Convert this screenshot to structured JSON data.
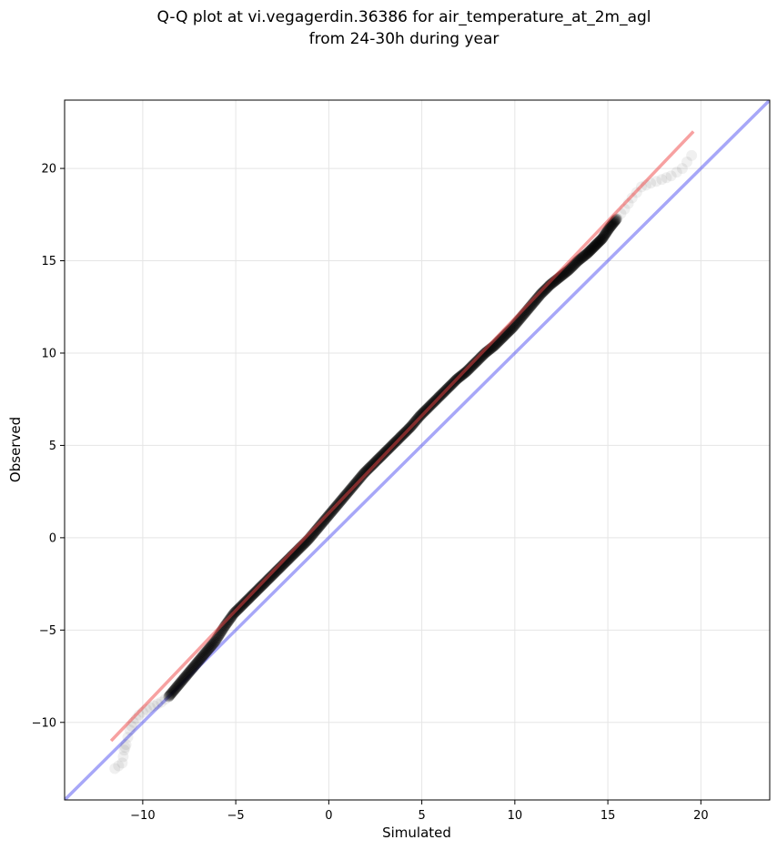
{
  "chart_data": {
    "type": "scatter",
    "title_lines": [
      "Q-Q plot at vi.vegagerdin.36386 for air_temperature_at_2m_agl",
      "from 24-30h during year"
    ],
    "xlabel": "Simulated",
    "ylabel": "Observed",
    "xlim": [
      -14.2,
      23.7
    ],
    "ylim": [
      -14.2,
      23.7
    ],
    "xticks": [
      -10,
      -5,
      0,
      5,
      10,
      15,
      20
    ],
    "yticks": [
      -10,
      -5,
      0,
      5,
      10,
      15,
      20
    ],
    "xtick_labels": [
      "−10",
      "−5",
      "0",
      "5",
      "10",
      "15",
      "20"
    ],
    "ytick_labels": [
      "−10",
      "−5",
      "0",
      "5",
      "10",
      "15",
      "20"
    ],
    "grid": true,
    "colors": {
      "points": "#000000",
      "fit_line": "#ef4444",
      "identity_line": "#3b3bef"
    },
    "identity_line": {
      "x": [
        -14.2,
        23.7
      ],
      "y": [
        -14.2,
        23.7
      ]
    },
    "fit_line": {
      "x": [
        -11.7,
        19.6
      ],
      "y": [
        -11.0,
        22.0
      ]
    },
    "quantiles": {
      "x": [
        -11.5,
        -11.1,
        -11.0,
        -10.9,
        -10.7,
        -10.5,
        -10.2,
        -9.8,
        -9.4,
        -9.0,
        -8.6,
        -8.1,
        -7.6,
        -7.1,
        -6.6,
        -6.1,
        -5.6,
        -5.1,
        -4.6,
        -4.1,
        -3.6,
        -3.1,
        -2.6,
        -2.1,
        -1.6,
        -1.1,
        -0.6,
        -0.1,
        0.4,
        0.9,
        1.4,
        1.9,
        2.4,
        2.9,
        3.4,
        3.9,
        4.4,
        4.9,
        5.4,
        5.9,
        6.4,
        6.9,
        7.4,
        7.9,
        8.4,
        8.9,
        9.4,
        9.9,
        10.4,
        10.9,
        11.4,
        11.9,
        12.4,
        12.9,
        13.4,
        13.9,
        14.3,
        14.7,
        15.1,
        15.5,
        15.9,
        16.3,
        16.8,
        17.3,
        17.9,
        18.4,
        19.0,
        19.5
      ],
      "y": [
        -12.5,
        -12.2,
        -11.5,
        -11.2,
        -10.4,
        -10.0,
        -9.6,
        -9.3,
        -9.1,
        -8.9,
        -8.6,
        -8.0,
        -7.4,
        -6.8,
        -6.2,
        -5.6,
        -4.8,
        -4.1,
        -3.6,
        -3.1,
        -2.6,
        -2.1,
        -1.6,
        -1.1,
        -0.6,
        -0.1,
        0.5,
        1.1,
        1.7,
        2.3,
        2.9,
        3.5,
        4.0,
        4.5,
        5.0,
        5.5,
        6.0,
        6.6,
        7.1,
        7.6,
        8.1,
        8.6,
        9.0,
        9.5,
        10.0,
        10.4,
        10.9,
        11.4,
        12.0,
        12.6,
        13.2,
        13.7,
        14.1,
        14.5,
        15.0,
        15.4,
        15.8,
        16.2,
        16.8,
        17.3,
        17.8,
        18.4,
        19.0,
        19.2,
        19.4,
        19.6,
        20.0,
        20.7
      ]
    }
  }
}
